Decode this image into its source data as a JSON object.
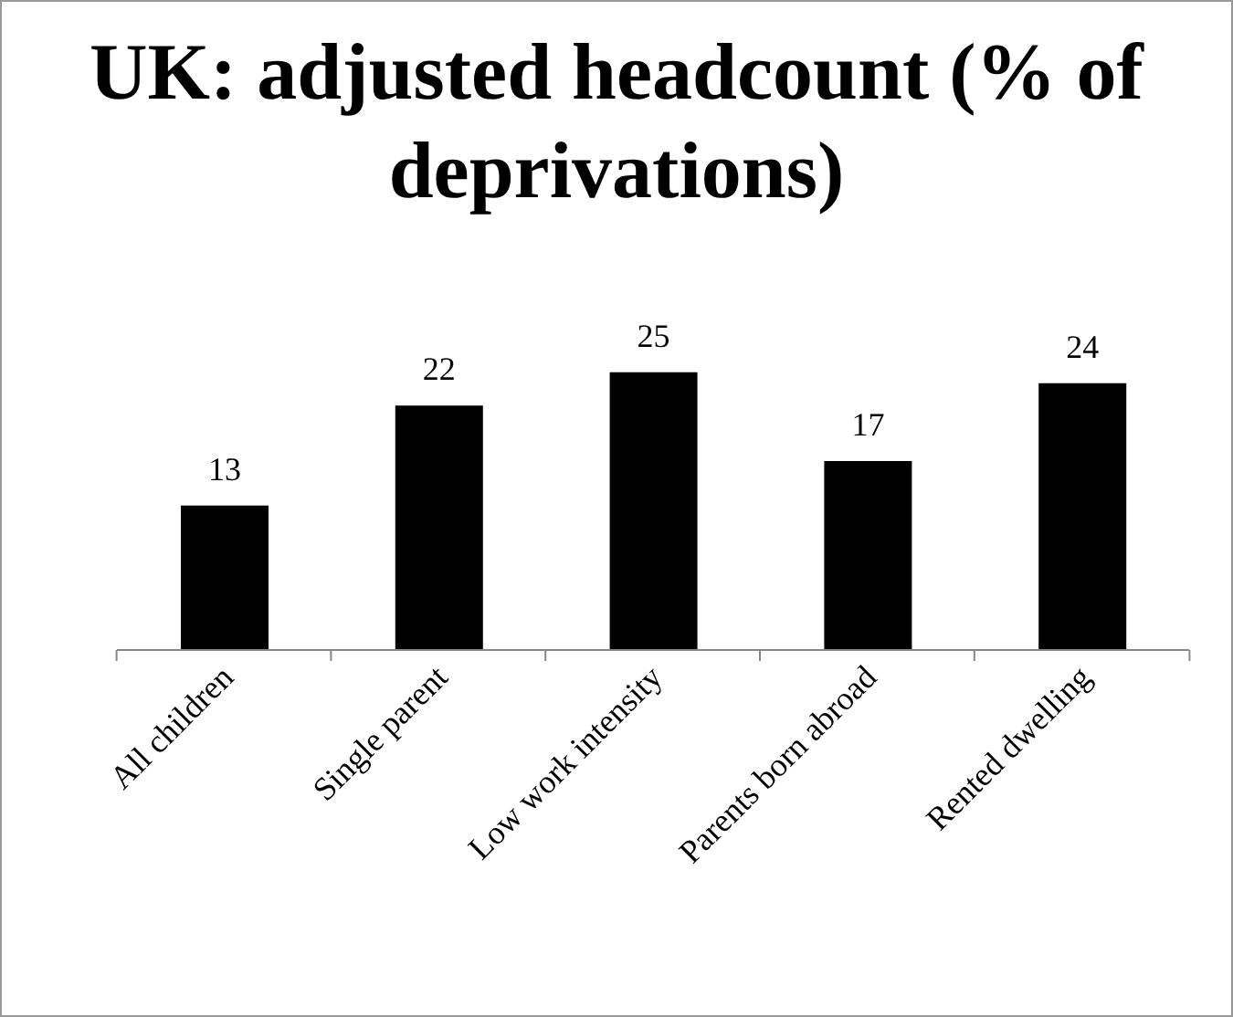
{
  "chart_data": {
    "type": "bar",
    "title": "UK: adjusted headcount (% of deprivations)",
    "categories": [
      "All children",
      "Single parent",
      "Low work intensity",
      "Parents born abroad",
      "Rented dwelling"
    ],
    "values": [
      13,
      22,
      25,
      17,
      24
    ],
    "color": "#000000",
    "data_labels": true,
    "grid": false,
    "legend": false
  }
}
